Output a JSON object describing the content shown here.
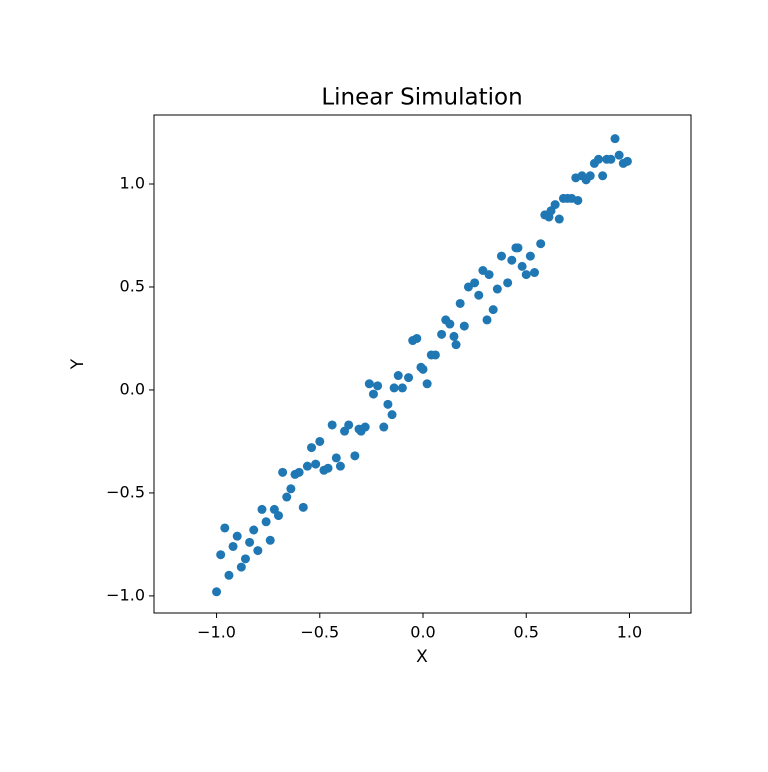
{
  "chart_data": {
    "type": "scatter",
    "title": "Linear Simulation",
    "x_label": "X",
    "y_label": "Y",
    "color": "#1f77b4",
    "grid": false,
    "xlim": [
      -1.303,
      1.298
    ],
    "ylim": [
      -1.083,
      1.335
    ],
    "xticks": [
      {
        "value": -1.0,
        "label": "−1.0"
      },
      {
        "value": -0.5,
        "label": "−0.5"
      },
      {
        "value": 0.0,
        "label": "0.0"
      },
      {
        "value": 0.5,
        "label": "0.5"
      },
      {
        "value": 1.0,
        "label": "1.0"
      }
    ],
    "yticks": [
      {
        "value": -1.0,
        "label": "−1.0"
      },
      {
        "value": -0.5,
        "label": "−0.5"
      },
      {
        "value": 0.0,
        "label": "0.0"
      },
      {
        "value": 0.5,
        "label": "0.5"
      },
      {
        "value": 1.0,
        "label": "1.0"
      }
    ],
    "x": [
      -1.0,
      -0.98,
      -0.96,
      -0.94,
      -0.92,
      -0.9,
      -0.88,
      -0.86,
      -0.84,
      -0.82,
      -0.8,
      -0.78,
      -0.76,
      -0.74,
      -0.72,
      -0.7,
      -0.68,
      -0.66,
      -0.64,
      -0.62,
      -0.6,
      -0.58,
      -0.56,
      -0.54,
      -0.52,
      -0.5,
      -0.48,
      -0.46,
      -0.44,
      -0.42,
      -0.4,
      -0.38,
      -0.36,
      -0.33,
      -0.31,
      -0.3,
      -0.28,
      -0.26,
      -0.24,
      -0.22,
      -0.19,
      -0.17,
      -0.15,
      -0.14,
      -0.12,
      -0.1,
      -0.07,
      -0.05,
      -0.03,
      -0.01,
      0.0,
      0.02,
      0.04,
      0.06,
      0.09,
      0.11,
      0.13,
      0.15,
      0.16,
      0.18,
      0.2,
      0.22,
      0.25,
      0.27,
      0.29,
      0.31,
      0.32,
      0.34,
      0.36,
      0.38,
      0.41,
      0.43,
      0.45,
      0.46,
      0.48,
      0.5,
      0.52,
      0.54,
      0.57,
      0.59,
      0.61,
      0.62,
      0.64,
      0.66,
      0.68,
      0.7,
      0.72,
      0.74,
      0.75,
      0.77,
      0.79,
      0.81,
      0.83,
      0.85,
      0.87,
      0.89,
      0.91,
      0.93,
      0.95,
      0.97,
      0.99
    ],
    "values": [
      -0.98,
      -0.8,
      -0.67,
      -0.9,
      -0.76,
      -0.71,
      -0.86,
      -0.82,
      -0.74,
      -0.68,
      -0.78,
      -0.58,
      -0.64,
      -0.73,
      -0.58,
      -0.61,
      -0.4,
      -0.52,
      -0.48,
      -0.41,
      -0.4,
      -0.57,
      -0.37,
      -0.28,
      -0.36,
      -0.25,
      -0.39,
      -0.38,
      -0.17,
      -0.33,
      -0.37,
      -0.2,
      -0.17,
      -0.32,
      -0.19,
      -0.2,
      -0.18,
      0.03,
      -0.02,
      0.02,
      -0.18,
      -0.07,
      -0.12,
      0.01,
      0.07,
      0.01,
      0.06,
      0.24,
      0.25,
      0.11,
      0.1,
      0.03,
      0.17,
      0.17,
      0.27,
      0.34,
      0.32,
      0.26,
      0.22,
      0.42,
      0.31,
      0.5,
      0.52,
      0.46,
      0.58,
      0.34,
      0.56,
      0.39,
      0.49,
      0.65,
      0.52,
      0.63,
      0.69,
      0.69,
      0.6,
      0.56,
      0.65,
      0.57,
      0.71,
      0.85,
      0.84,
      0.87,
      0.9,
      0.83,
      0.93,
      0.93,
      0.93,
      1.03,
      0.92,
      1.04,
      1.02,
      1.04,
      1.1,
      1.12,
      1.04,
      1.12,
      1.12,
      1.22,
      1.14,
      1.1,
      1.11
    ]
  }
}
